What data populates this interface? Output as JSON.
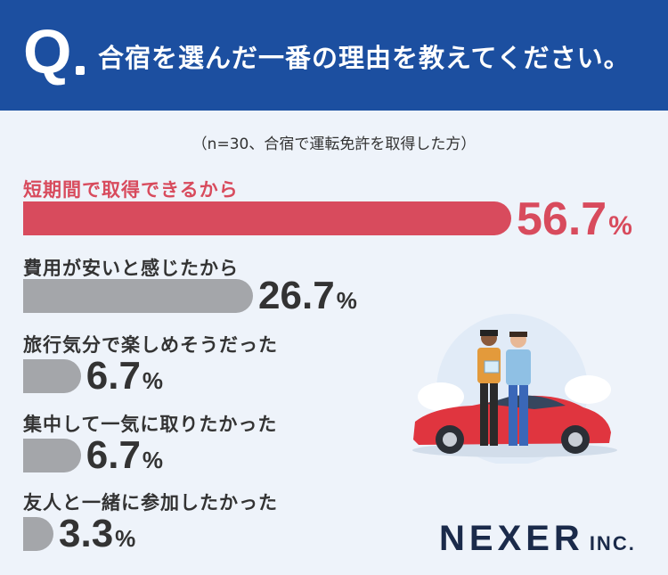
{
  "header": {
    "q": "Q",
    "question": "合宿を選んだ一番の理由を教えてください。"
  },
  "note": "（n=30、合宿で運転免許を取得した方）",
  "chart_data": {
    "type": "bar",
    "orientation": "horizontal",
    "unit": "%",
    "xlim": [
      0,
      56.7
    ],
    "highlight_color": "#d84b5d",
    "bar_color": "#a4a6aa",
    "categories": [
      "短期間で取得できるから",
      "費用が安いと感じたから",
      "旅行気分で楽しめそうだった",
      "集中して一気に取りたかった",
      "友人と一緒に参加したかった"
    ],
    "values": [
      56.7,
      26.7,
      6.7,
      6.7,
      3.3
    ],
    "value_labels": [
      "56.7",
      "26.7",
      "6.7",
      "6.7",
      "3.3"
    ],
    "highlight_index": 0
  },
  "logo": {
    "main": "NEXER",
    "inc": "INC."
  }
}
